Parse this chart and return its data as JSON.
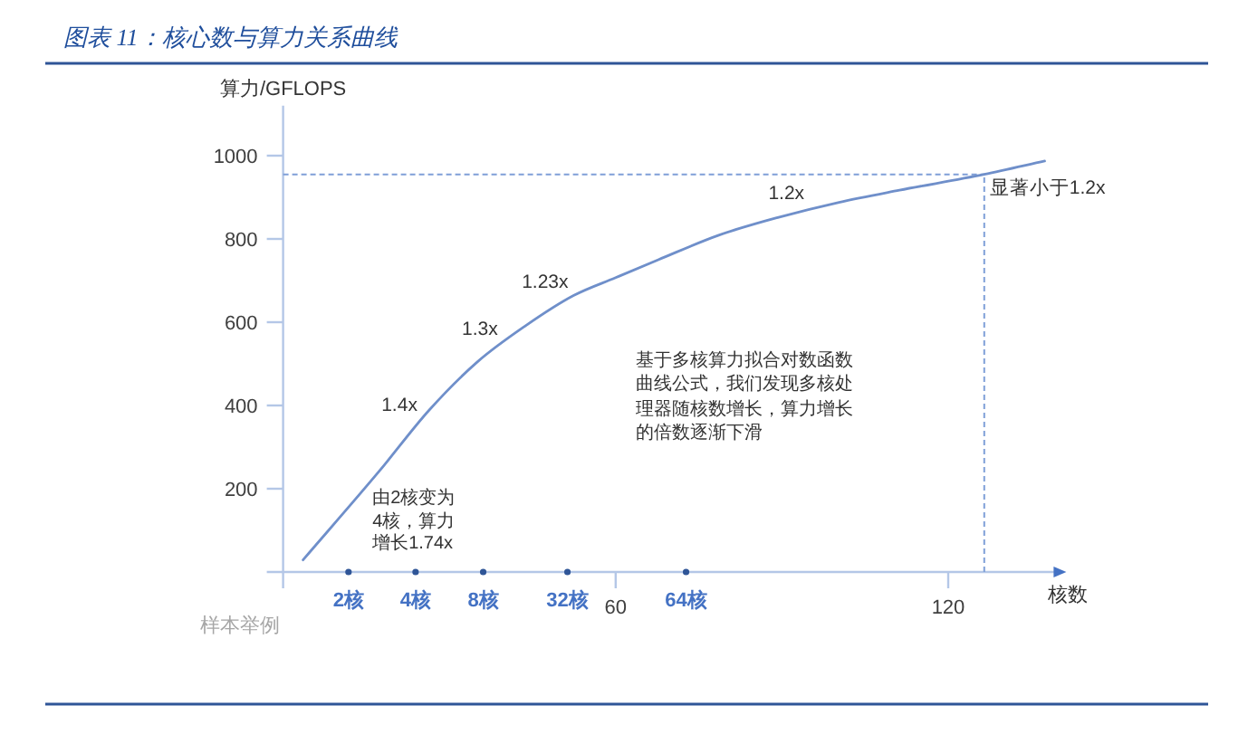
{
  "chart_data": {
    "type": "line",
    "title": "图表 11：核心数与算力关系曲线",
    "xlabel": "核数",
    "ylabel": "算力/GFLOPS",
    "x": [
      3.6,
      17.4,
      26.3,
      35,
      43.7,
      52.4,
      60,
      67.7,
      78.6,
      89.4,
      100.3,
      111.2,
      126.5,
      137.4
    ],
    "series": [
      {
        "color": "#6f8fca",
        "values": [
          29,
          243,
          388,
          504,
          591,
          664,
          707,
          750,
          809,
          852,
          888,
          917,
          955,
          987
        ]
      }
    ],
    "xlim": [
      0,
      140
    ],
    "ylim": [
      0,
      1120
    ],
    "xticks": [
      60,
      120
    ],
    "yticks": [
      200,
      400,
      600,
      800,
      1000
    ],
    "line_style": "solid",
    "ref_lines": [
      {
        "axis": "y",
        "value": 955,
        "color": "#7f9fd8",
        "line_style": "dashed"
      },
      {
        "axis": "x",
        "value": 126.5,
        "color": "#7f9fd8",
        "line_style": "dashed"
      }
    ],
    "annotations": [
      "由2核变为4核，算力增长1.74x",
      {
        "text": "1.4x",
        "x": 24.6,
        "y": 360
      },
      {
        "text": "1.3x",
        "x": 38.2,
        "y": 536
      },
      {
        "text": "1.23x",
        "x": 49.9,
        "y": 643
      },
      {
        "text": "1.2x",
        "x": 91.7,
        "y": 860
      },
      {
        "text": "显著小于1.2x",
        "x": 126.5,
        "y": 955
      },
      "基于多核算力拟合对数函数曲线公式，我们发现多核处理器随核数增长，算力增长的倍数逐渐下滑",
      {
        "text": "2核",
        "x": 11.8,
        "y": 0
      },
      {
        "text": "4核",
        "x": 23.9,
        "y": 0
      },
      {
        "text": "8核",
        "x": 36.1,
        "y": 0
      },
      {
        "text": "32核",
        "x": 51.3,
        "y": 0
      },
      {
        "text": "64核",
        "x": 72.7,
        "y": 0
      },
      "样本举例"
    ]
  }
}
